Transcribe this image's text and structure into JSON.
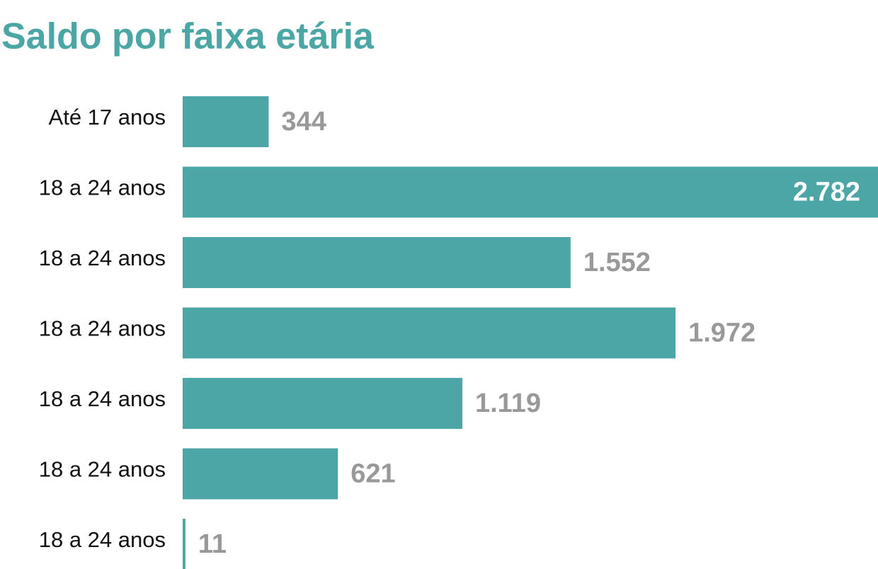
{
  "chart_data": {
    "type": "bar",
    "orientation": "horizontal",
    "title": "Saldo por faixa etária",
    "categories": [
      "Até 17 anos",
      "18 a 24 anos",
      "18 a 24 anos",
      "18 a 24 anos",
      "18 a 24 anos",
      "18 a 24 anos",
      "18 a 24 anos"
    ],
    "values": [
      344,
      2782,
      1552,
      1972,
      1119,
      621,
      11
    ],
    "value_labels": [
      "344",
      "2.782",
      "1.552",
      "1.972",
      "1.119",
      "621",
      "11"
    ],
    "color": "#4ca6a6"
  }
}
